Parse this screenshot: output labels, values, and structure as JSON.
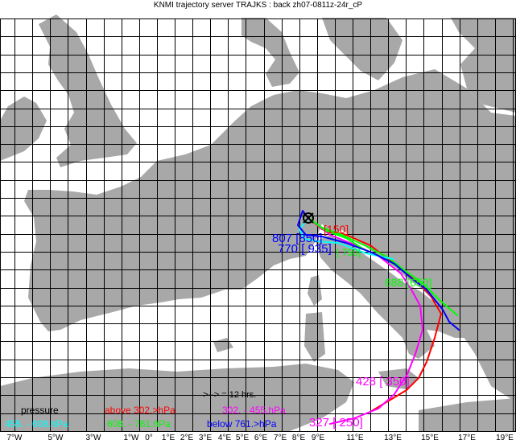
{
  "title": "KNMI trajectory server TRAJKS : back zh07-0811z-24r_cP",
  "colors": {
    "land": "#a8a8a8",
    "sea": "#ffffff",
    "grid": "#000000",
    "above": "#ff0000",
    "mid": "#ff00ff",
    "low": "#00ff00",
    "lowest": "#0000ff",
    "light": "#00ffff"
  },
  "legend": {
    "pressure_label": "pressure",
    "interval": ">-->  = 12 hrs.",
    "above": "above 302.>hPa",
    "mid": "302. -  455.hPa",
    "low": "608. -  761.hPa",
    "below": "below 761.>hPa",
    "light": "455. -  608.hPa"
  },
  "x_ticks": [
    "7°W",
    "5°W",
    "3°W",
    "1°W",
    "0°",
    "1°E",
    "2°E",
    "3°E",
    "4°E",
    "5°E",
    "6°E",
    "7°E",
    "8°E",
    "9°E",
    "11°E",
    "13°E",
    "15°E",
    "17°E",
    "19°E"
  ],
  "origin_marker": "crossed-circle-icon",
  "labels": {
    "red_start": "150",
    "red_start_bracket": "[150]",
    "blue_a": "807",
    "blue_b": "[850]",
    "blue_c": "770",
    "blue_d": "[ 935]",
    "green_a": "[ 750]",
    "green_b": "688",
    "green_c": "[650]",
    "magenta_a": "428",
    "magenta_b": "[ 350]",
    "magenta_c": "327",
    "magenta_d": "[ 250]"
  }
}
